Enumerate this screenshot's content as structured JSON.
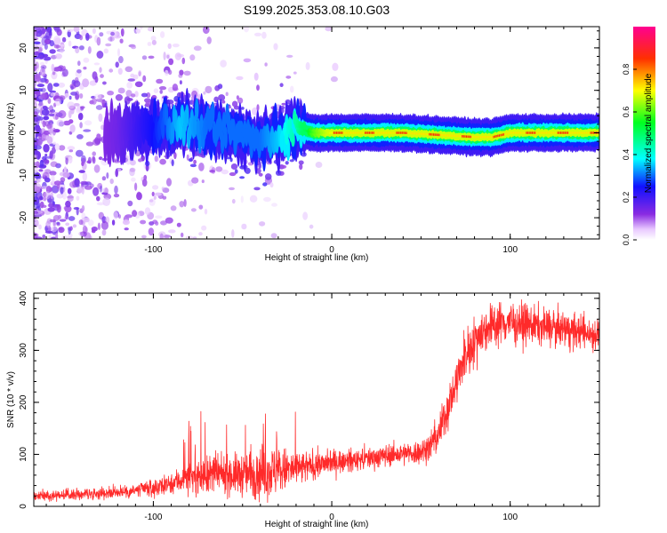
{
  "title": "S199.2025.353.08.10.G03",
  "colors": {
    "snr_line": "#ff2a2a",
    "axis": "#000000",
    "background": "#ffffff"
  },
  "chart_data": [
    {
      "type": "heatmap",
      "name": "spectrogram",
      "xlabel": "Height of straight line (km)",
      "ylabel": "Frequency (Hz)",
      "xlim": [
        -167,
        150
      ],
      "ylim": [
        -25,
        25
      ],
      "xticks": [
        -100,
        0,
        100
      ],
      "yticks": [
        -20,
        -10,
        0,
        10,
        20
      ],
      "colorbar": {
        "label": "Normalized spectral amplitude",
        "range": [
          0,
          1
        ],
        "ticks": [
          0.0,
          0.2,
          0.4,
          0.6,
          0.8
        ],
        "colormap": "rainbow (white-violet-blue-cyan-green-yellow-red-magenta)"
      },
      "description_series": {
        "name": "dominant frequency ridge",
        "x": [
          -167,
          -140,
          -120,
          -100,
          -85,
          -70,
          -55,
          -40,
          -30,
          -20,
          -10,
          0,
          20,
          40,
          60,
          80,
          90,
          100,
          120,
          150
        ],
        "freq": [
          0,
          0,
          0,
          1,
          2,
          1,
          0,
          -2,
          -1,
          1,
          0,
          0,
          0,
          0,
          -0.5,
          -1,
          -1,
          0,
          0,
          0
        ],
        "amplitude": [
          0.08,
          0.1,
          0.15,
          0.25,
          0.35,
          0.3,
          0.3,
          0.3,
          0.35,
          0.45,
          0.6,
          0.7,
          0.75,
          0.75,
          0.8,
          0.85,
          0.85,
          0.9,
          0.85,
          0.85
        ]
      }
    },
    {
      "type": "line",
      "name": "snr",
      "xlabel": "Height of straight line (km)",
      "ylabel": "SNR (10 * v/v)",
      "xlim": [
        -167,
        150
      ],
      "ylim": [
        0,
        410
      ],
      "xticks": [
        -100,
        0,
        100
      ],
      "yticks": [
        0,
        100,
        200,
        300,
        400
      ],
      "series": [
        {
          "name": "SNR",
          "x": [
            -167,
            -150,
            -130,
            -110,
            -100,
            -90,
            -80,
            -70,
            -60,
            -50,
            -40,
            -30,
            -20,
            -10,
            0,
            10,
            20,
            30,
            40,
            50,
            55,
            60,
            65,
            70,
            75,
            80,
            85,
            90,
            100,
            110,
            120,
            130,
            140,
            150
          ],
          "y": [
            20,
            22,
            25,
            30,
            35,
            45,
            55,
            60,
            60,
            62,
            65,
            68,
            72,
            78,
            85,
            88,
            92,
            98,
            100,
            105,
            115,
            140,
            190,
            240,
            290,
            320,
            340,
            350,
            355,
            350,
            345,
            340,
            335,
            330
          ],
          "noise": [
            8,
            8,
            10,
            12,
            14,
            18,
            25,
            30,
            30,
            35,
            45,
            40,
            30,
            22,
            20,
            18,
            18,
            18,
            18,
            20,
            25,
            30,
            35,
            38,
            40,
            40,
            38,
            36,
            35,
            32,
            30,
            30,
            28,
            28
          ]
        }
      ]
    }
  ]
}
